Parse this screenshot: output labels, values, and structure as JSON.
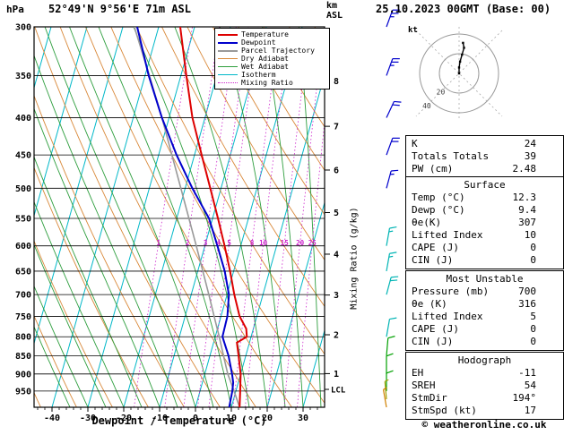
{
  "header": {
    "pressure_unit": "hPa",
    "station": "52°49'N 9°56'E 71m ASL",
    "altitude_unit_line1": "km",
    "altitude_unit_line2": "ASL",
    "datetime": "25.10.2023 00GMT (Base: 00)",
    "copyright": "© weatheronline.co.uk"
  },
  "legend": [
    {
      "label": "Temperature",
      "color": "#dd0000",
      "dotted": false,
      "weight": 2
    },
    {
      "label": "Dewpoint",
      "color": "#0000cc",
      "dotted": false,
      "weight": 2
    },
    {
      "label": "Parcel Trajectory",
      "color": "#999999",
      "dotted": false,
      "weight": 2
    },
    {
      "label": "Dry Adiabat",
      "color": "#d9893a",
      "dotted": false,
      "weight": 1
    },
    {
      "label": "Wet Adiabat",
      "color": "#2e9e3e",
      "dotted": false,
      "weight": 1
    },
    {
      "label": "Isotherm",
      "color": "#00b8c8",
      "dotted": false,
      "weight": 1
    },
    {
      "label": "Mixing Ratio",
      "color": "#cc22cc",
      "dotted": true,
      "weight": 1
    }
  ],
  "axes": {
    "xlabel": "Dewpoint / Temperature (°C)",
    "x_ticks": [
      -40,
      -30,
      -20,
      -10,
      0,
      10,
      20,
      30
    ],
    "pressure_ticks": [
      300,
      350,
      400,
      450,
      500,
      550,
      600,
      650,
      700,
      750,
      800,
      850,
      900,
      950
    ],
    "km_ticks": [
      1,
      2,
      3,
      4,
      5,
      6,
      7,
      8
    ],
    "lcl_label": "LCL",
    "mixing_ratio_label": "Mixing Ratio (g/kg)",
    "mixing_ratio_values": [
      1,
      2,
      3,
      4,
      5,
      8,
      10,
      15,
      20,
      25
    ]
  },
  "chart_data": {
    "type": "line",
    "title": "Skew-T log-P sounding, 52°49'N 9°56'E 71m ASL, 25.10.2023 00GMT",
    "x_axis": {
      "label": "Dewpoint / Temperature (°C)",
      "surface_range": [
        -45,
        36
      ],
      "ticks": [
        -40,
        -30,
        -20,
        -10,
        0,
        10,
        20,
        30
      ]
    },
    "y_axis": {
      "label": "hPa",
      "scale": "log",
      "range": [
        300,
        1000
      ],
      "ticks": [
        300,
        350,
        400,
        450,
        500,
        550,
        600,
        650,
        700,
        750,
        800,
        850,
        900,
        950
      ]
    },
    "series": [
      {
        "name": "Temperature",
        "color": "#dd0000",
        "points_p_T": [
          [
            1000,
            12.3
          ],
          [
            950,
            11.2
          ],
          [
            925,
            10.6
          ],
          [
            900,
            10.0
          ],
          [
            850,
            8.0
          ],
          [
            815,
            6.5
          ],
          [
            800,
            8.8
          ],
          [
            780,
            8.0
          ],
          [
            750,
            5.2
          ],
          [
            700,
            2.0
          ],
          [
            650,
            -1.0
          ],
          [
            600,
            -4.5
          ],
          [
            550,
            -8.5
          ],
          [
            500,
            -13.0
          ],
          [
            450,
            -18.0
          ],
          [
            400,
            -23.5
          ],
          [
            350,
            -28.5
          ],
          [
            300,
            -34.0
          ]
        ]
      },
      {
        "name": "Dewpoint",
        "color": "#0000cc",
        "points_p_T": [
          [
            1000,
            9.4
          ],
          [
            950,
            9.0
          ],
          [
            925,
            8.6
          ],
          [
            900,
            7.6
          ],
          [
            850,
            5.2
          ],
          [
            815,
            3.0
          ],
          [
            800,
            2.0
          ],
          [
            750,
            1.8
          ],
          [
            700,
            0.5
          ],
          [
            650,
            -2.5
          ],
          [
            600,
            -6.5
          ],
          [
            550,
            -11.0
          ],
          [
            500,
            -18.0
          ],
          [
            450,
            -25.0
          ],
          [
            400,
            -32.0
          ],
          [
            350,
            -39.0
          ],
          [
            300,
            -46.0
          ]
        ]
      },
      {
        "name": "Parcel Trajectory",
        "color": "#999999",
        "points_p_T": [
          [
            1000,
            12.3
          ],
          [
            945,
            9.2
          ],
          [
            900,
            6.4
          ],
          [
            850,
            3.8
          ],
          [
            800,
            1.1
          ],
          [
            750,
            -1.9
          ],
          [
            700,
            -5.1
          ],
          [
            650,
            -8.6
          ],
          [
            600,
            -12.4
          ],
          [
            550,
            -16.6
          ],
          [
            500,
            -21.2
          ],
          [
            450,
            -26.3
          ],
          [
            400,
            -32.0
          ],
          [
            350,
            -38.8
          ],
          [
            300,
            -46.8
          ]
        ]
      }
    ],
    "wind_barbs": [
      {
        "p": 300,
        "speed_kt": 25,
        "dir_deg": 200,
        "color": "#0000cc"
      },
      {
        "p": 350,
        "speed_kt": 25,
        "dir_deg": 200,
        "color": "#0000cc"
      },
      {
        "p": 400,
        "speed_kt": 20,
        "dir_deg": 205,
        "color": "#0000cc"
      },
      {
        "p": 450,
        "speed_kt": 20,
        "dir_deg": 200,
        "color": "#0000cc"
      },
      {
        "p": 500,
        "speed_kt": 15,
        "dir_deg": 195,
        "color": "#0000cc"
      },
      {
        "p": 600,
        "speed_kt": 15,
        "dir_deg": 190,
        "color": "#00b4b4"
      },
      {
        "p": 650,
        "speed_kt": 15,
        "dir_deg": 190,
        "color": "#00b4b4"
      },
      {
        "p": 700,
        "speed_kt": 20,
        "dir_deg": 195,
        "color": "#00b4b4"
      },
      {
        "p": 800,
        "speed_kt": 10,
        "dir_deg": 190,
        "color": "#00b4b4"
      },
      {
        "p": 850,
        "speed_kt": 10,
        "dir_deg": 185,
        "color": "#00a000"
      },
      {
        "p": 900,
        "speed_kt": 10,
        "dir_deg": 180,
        "color": "#00a000"
      },
      {
        "p": 950,
        "speed_kt": 10,
        "dir_deg": 180,
        "color": "#00a000"
      },
      {
        "p": 975,
        "speed_kt": 5,
        "dir_deg": 175,
        "color": "#a0a000"
      },
      {
        "p": 1000,
        "speed_kt": 5,
        "dir_deg": 170,
        "color": "#d08000"
      }
    ]
  },
  "hodograph": {
    "unit_label": "kt",
    "rings_kt": [
      20,
      40
    ],
    "trace_uv_kt": [
      [
        0,
        0
      ],
      [
        0,
        6
      ],
      [
        1,
        12
      ],
      [
        3,
        19
      ],
      [
        5,
        26
      ],
      [
        4,
        31
      ]
    ]
  },
  "panel": {
    "indices": {
      "rows": [
        {
          "label": "K",
          "value": "24"
        },
        {
          "label": "Totals Totals",
          "value": "39"
        },
        {
          "label": "PW (cm)",
          "value": "2.48"
        }
      ]
    },
    "surface": {
      "title": "Surface",
      "rows": [
        {
          "label": "Temp (°C)",
          "value": "12.3"
        },
        {
          "label": "Dewp (°C)",
          "value": "9.4"
        },
        {
          "label": "θe(K)",
          "value": "307"
        },
        {
          "label": "Lifted Index",
          "value": "10"
        },
        {
          "label": "CAPE (J)",
          "value": "0"
        },
        {
          "label": "CIN (J)",
          "value": "0"
        }
      ]
    },
    "most_unstable": {
      "title": "Most Unstable",
      "rows": [
        {
          "label": "Pressure (mb)",
          "value": "700"
        },
        {
          "label": "θe (K)",
          "value": "316"
        },
        {
          "label": "Lifted Index",
          "value": "5"
        },
        {
          "label": "CAPE (J)",
          "value": "0"
        },
        {
          "label": "CIN (J)",
          "value": "0"
        }
      ]
    },
    "hodograph_box": {
      "title": "Hodograph",
      "rows": [
        {
          "label": "EH",
          "value": "-11"
        },
        {
          "label": "SREH",
          "value": "54"
        },
        {
          "label": "StmDir",
          "value": "194°"
        },
        {
          "label": "StmSpd (kt)",
          "value": "17"
        }
      ]
    }
  }
}
